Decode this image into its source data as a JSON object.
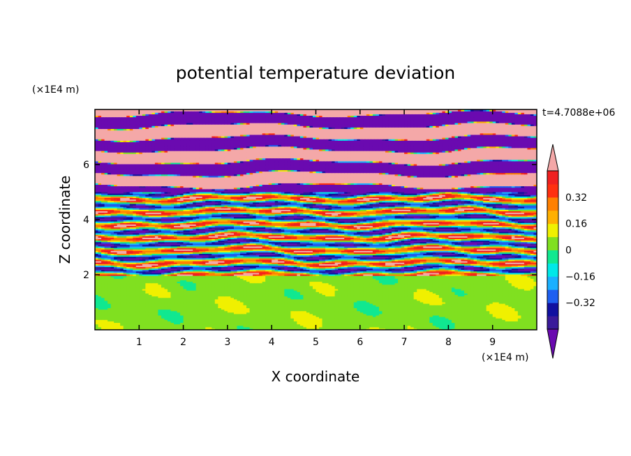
{
  "chart_data": {
    "type": "heatmap",
    "title": "potential temperature deviation",
    "xlabel": "X coordinate",
    "ylabel": "Z coordinate",
    "x_unit": "(×1E4 m)",
    "y_unit": "(×1E4 m)",
    "time_label": "t=4.7088e+06",
    "x_range": [
      0,
      10
    ],
    "y_range": [
      0,
      8
    ],
    "x_ticks": [
      1,
      2,
      3,
      4,
      5,
      6,
      7,
      8,
      9
    ],
    "y_ticks": [
      2,
      4,
      6
    ],
    "grid": false,
    "colorbar": {
      "placement": "right",
      "extend": "both",
      "levels": [
        -0.48,
        -0.4,
        -0.32,
        -0.24,
        -0.16,
        -0.08,
        0,
        0.08,
        0.16,
        0.24,
        0.32,
        0.4,
        0.48
      ],
      "tick_values": [
        0.32,
        0.16,
        0,
        -0.16,
        -0.32
      ],
      "tick_labels": [
        "0.32",
        "0.16",
        "0",
        "−0.16",
        "−0.32"
      ],
      "colors": [
        "#6a0ab0",
        "#3a1a9a",
        "#1010a0",
        "#1e5ff0",
        "#1ab0ff",
        "#00e8e8",
        "#10e890",
        "#80e020",
        "#f0f000",
        "#ffb000",
        "#ff8000",
        "#ff3010",
        "#f02020",
        "#f4a8a8"
      ]
    },
    "regions": [
      {
        "z_range": [
          0,
          2
        ],
        "description_values": [
          0.0,
          0.08
        ],
        "pattern": "smooth"
      },
      {
        "z_range": [
          2,
          5
        ],
        "description_values": [
          -0.48,
          0.48
        ],
        "pattern": "fine layered"
      },
      {
        "z_range": [
          5,
          8
        ],
        "description_values": [
          -0.48,
          0.48
        ],
        "pattern": "alternating bands"
      }
    ]
  }
}
